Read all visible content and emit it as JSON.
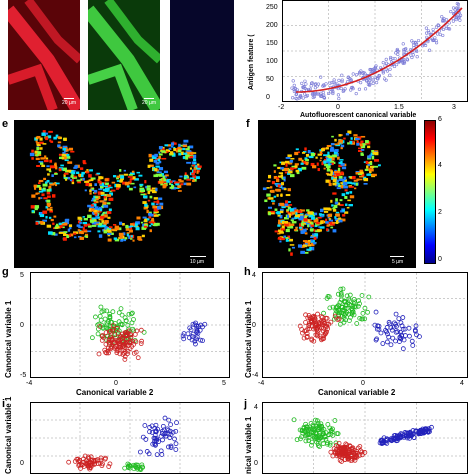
{
  "panels": {
    "top": {
      "scalebars": [
        "20 µm",
        "20 µm"
      ],
      "colors": [
        "#c0141c",
        "#1fa01f",
        "#0a0a3a"
      ]
    },
    "d": {
      "ylabel": "Antigen feature (",
      "xlabel": "Autofluorescent canonical variable",
      "xticks": [
        "-2",
        "0",
        "1.5",
        "3"
      ],
      "yticks": [
        "250",
        "200",
        "150",
        "100",
        "50",
        "0"
      ]
    },
    "e": {
      "letter": "e",
      "scalebar": "10 µm"
    },
    "f": {
      "letter": "f",
      "scalebar": "5 µm",
      "colorbar_ticks": [
        "6",
        "4",
        "2",
        "0"
      ]
    },
    "g": {
      "letter": "g",
      "ylabel": "Canonical variable 1",
      "xlabel": "Canonical variable 2",
      "xticks": [
        "-4",
        "0",
        "5"
      ],
      "yticks": [
        "5",
        "0",
        "-5"
      ]
    },
    "h": {
      "letter": "h",
      "ylabel": "Canonical variable 1",
      "xlabel": "Canonical variable 2",
      "xticks": [
        "-4",
        "0",
        "4"
      ],
      "yticks": [
        "4",
        "0",
        "-4"
      ]
    },
    "i": {
      "letter": "i",
      "ylabel": "Canonical variable 1",
      "yticks": [
        "0"
      ]
    },
    "j": {
      "letter": "j",
      "ylabel": "nical variable 1",
      "yticks": [
        "4",
        "0"
      ]
    }
  },
  "chart_data": [
    {
      "type": "scatter",
      "panel": "d",
      "ylabel": "Antigen feature (",
      "xlabel": "Autofluorescent canonical variable",
      "xlim": [
        -2,
        3
      ],
      "ylim": [
        0,
        260
      ],
      "series": [
        {
          "name": "",
          "color": "#7b7bd6"
        },
        {
          "name": "",
          "color": "#d42020"
        }
      ]
    },
    {
      "type": "scatter",
      "panel": "g",
      "xlabel": "Canonical variable 2",
      "ylabel": "Canonical variable 1",
      "xlim": [
        -4,
        5
      ],
      "ylim": [
        -5,
        5
      ],
      "series": [
        {
          "color": "#22bb22"
        },
        {
          "color": "#cc2222"
        },
        {
          "color": "#2222bb"
        }
      ]
    },
    {
      "type": "scatter",
      "panel": "h",
      "xlabel": "Canonical variable 2",
      "ylabel": "Canonical variable 1",
      "xlim": [
        -4,
        4
      ],
      "ylim": [
        -4,
        4
      ],
      "series": [
        {
          "color": "#22bb22"
        },
        {
          "color": "#cc2222"
        },
        {
          "color": "#2222bb"
        }
      ]
    }
  ]
}
